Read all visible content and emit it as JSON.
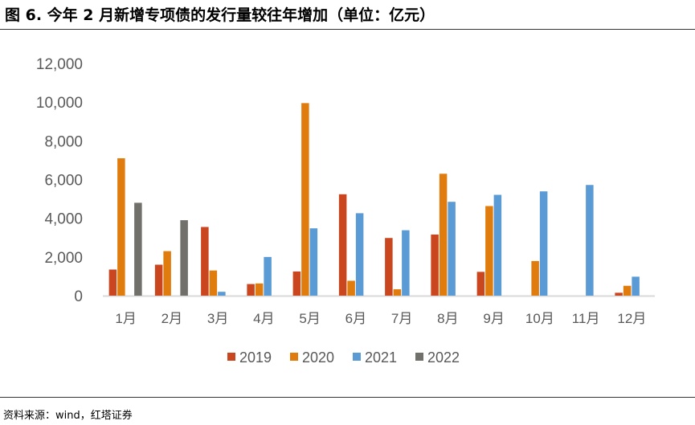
{
  "title": "图 6. 今年 2 月新增专项债的发行量较往年增加（单位：亿元）",
  "source": "资料来源：wind，红塔证券",
  "chart_data": {
    "type": "bar",
    "title": "图 6. 今年 2 月新增专项债的发行量较往年增加（单位：亿元）",
    "xlabel": "",
    "ylabel": "亿元",
    "ylim": [
      0,
      12000
    ],
    "yticks": [
      0,
      2000,
      4000,
      6000,
      8000,
      10000,
      12000
    ],
    "ytick_labels": [
      "0",
      "2,000",
      "4,000",
      "6,000",
      "8,000",
      "10,000",
      "12,000"
    ],
    "categories": [
      "1月",
      "2月",
      "3月",
      "4月",
      "5月",
      "6月",
      "7月",
      "8月",
      "9月",
      "10月",
      "11月",
      "12月"
    ],
    "legend_position": "bottom",
    "grid": false,
    "series": [
      {
        "name": "2019",
        "color": "#C9461F",
        "values": [
          1350,
          1600,
          3550,
          600,
          1250,
          5240,
          2980,
          3160,
          1230,
          null,
          null,
          150
        ]
      },
      {
        "name": "2020",
        "color": "#E07C0E",
        "values": [
          7100,
          2300,
          1300,
          630,
          9950,
          770,
          330,
          6300,
          4630,
          1790,
          null,
          510
        ]
      },
      {
        "name": "2021",
        "color": "#5B9BD5",
        "values": [
          null,
          null,
          200,
          2000,
          3480,
          4260,
          3380,
          4850,
          5210,
          5390,
          5720,
          980
        ]
      },
      {
        "name": "2022",
        "color": "#71706B",
        "values": [
          4800,
          3900,
          null,
          null,
          null,
          null,
          null,
          null,
          null,
          null,
          null,
          null
        ]
      }
    ]
  }
}
